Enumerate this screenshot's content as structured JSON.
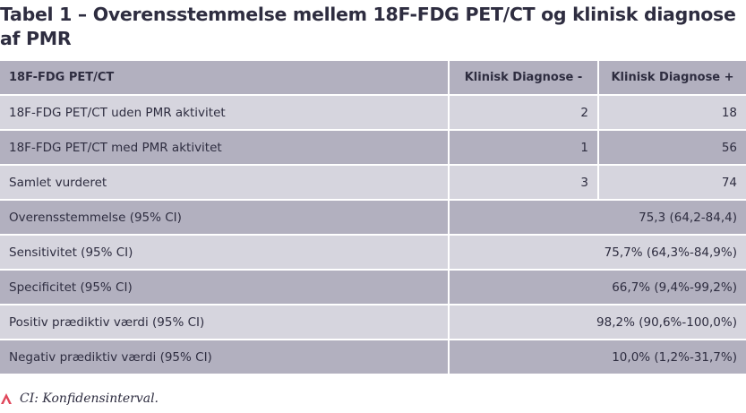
{
  "title": "Tabel 1 – Overensstemmelse mellem 18F-FDG PET/CT og klinisk diagnose af PMR",
  "header": {
    "col1": "18F-FDG PET/CT",
    "col2": "Klinisk Diagnose -",
    "col3": "Klinisk Diagnose +"
  },
  "rows": [
    {
      "label": "18F-FDG PET/CT uden PMR aktivitet",
      "neg": "2",
      "pos": "18"
    },
    {
      "label": "18F-FDG PET/CT med PMR aktivitet",
      "neg": "1",
      "pos": "56"
    },
    {
      "label": "Samlet vurderet",
      "neg": "3",
      "pos": "74"
    }
  ],
  "stats": [
    {
      "label": "Overensstemmelse (95% CI)",
      "value": "75,3 (64,2-84,4)"
    },
    {
      "label": "Sensitivitet (95% CI)",
      "value": "75,7% (64,3%-84,9%)"
    },
    {
      "label": "Specificitet (95% CI)",
      "value": "66,7% (9,4%-99,2%)"
    },
    {
      "label": "Positiv prædiktiv værdi (95% CI)",
      "value": "98,2% (90,6%-100,0%)"
    },
    {
      "label": "Negativ prædiktiv værdi (95% CI)",
      "value": "10,0% (1,2%-31,7%)"
    }
  ],
  "footnote": "CI: Konfidensinterval.",
  "colors": {
    "header_bg": "#b2b0bf",
    "row_light": "#d6d5de",
    "row_dark": "#b2b0bf",
    "text": "#2e2d40",
    "accent": "#e0475b"
  },
  "icons": {
    "footnote_marker": "triangle-icon"
  }
}
